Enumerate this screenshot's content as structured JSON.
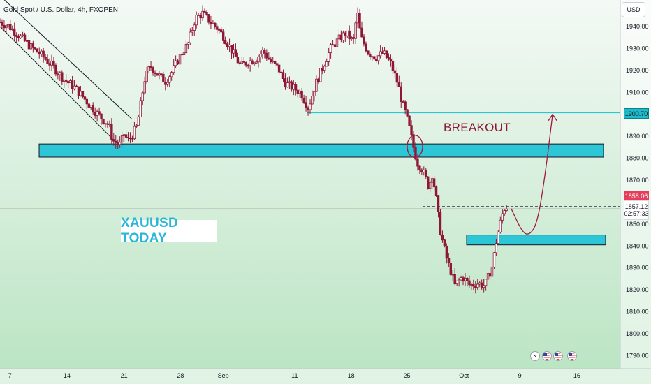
{
  "header": {
    "symbol_title": "Gold Spot / U.S. Dollar, 4h, FXOPEN",
    "currency": "USD"
  },
  "annotations": {
    "chart_label": "XAUUSD TODAY",
    "breakout_label": "BREAKOUT"
  },
  "price_tags": {
    "target": "1900.70",
    "current": "1858.06",
    "last_price": "1857.12",
    "countdown": "02:57:33"
  },
  "events": [
    {
      "icon": "lightning-event-icon"
    },
    {
      "icon": "us-flag-event-icon"
    },
    {
      "icon": "us-flag-event-icon"
    },
    {
      "icon": "us-flag-event-icon"
    }
  ],
  "colors": {
    "background_top": "#f3f9f4",
    "background_bottom": "#b7e3c0",
    "candle": "#8e1835",
    "zone_fill": "#2cc6d6",
    "target_line": "#2cc6d6",
    "arrow": "#a0193d",
    "price_tag_red": "#e53e5a"
  },
  "chart_data": {
    "type": "candlestick",
    "timeframe": "4h",
    "x_ticks": [
      "7",
      "14",
      "21",
      "28",
      "Sep",
      "11",
      "18",
      "25",
      "Oct",
      "9",
      "16"
    ],
    "y_ticks": [
      1790,
      1800,
      1810,
      1820,
      1830,
      1840,
      1850,
      1860,
      1870,
      1880,
      1890,
      1900,
      1910,
      1920,
      1930,
      1940
    ],
    "ylim": [
      1786,
      1954
    ],
    "grid": false,
    "close_path": [
      [
        0,
        1942
      ],
      [
        5,
        1940
      ],
      [
        10,
        1936
      ],
      [
        16,
        1931
      ],
      [
        22,
        1927
      ],
      [
        28,
        1922
      ],
      [
        34,
        1916
      ],
      [
        40,
        1912
      ],
      [
        46,
        1906
      ],
      [
        52,
        1900
      ],
      [
        58,
        1895
      ],
      [
        60,
        1888
      ],
      [
        64,
        1886
      ],
      [
        66,
        1891
      ],
      [
        68,
        1888
      ],
      [
        70,
        1890
      ],
      [
        73,
        1895
      ],
      [
        77,
        1916
      ],
      [
        80,
        1922
      ],
      [
        84,
        1918
      ],
      [
        88,
        1915
      ],
      [
        92,
        1920
      ],
      [
        96,
        1927
      ],
      [
        100,
        1932
      ],
      [
        104,
        1944
      ],
      [
        108,
        1946
      ],
      [
        112,
        1942
      ],
      [
        116,
        1939
      ],
      [
        120,
        1934
      ],
      [
        124,
        1928
      ],
      [
        128,
        1922
      ],
      [
        132,
        1924
      ],
      [
        136,
        1925
      ],
      [
        140,
        1929
      ],
      [
        144,
        1924
      ],
      [
        148,
        1921
      ],
      [
        152,
        1914
      ],
      [
        156,
        1912
      ],
      [
        160,
        1910
      ],
      [
        164,
        1903
      ],
      [
        168,
        1914
      ],
      [
        172,
        1922
      ],
      [
        176,
        1930
      ],
      [
        180,
        1934
      ],
      [
        184,
        1937
      ],
      [
        188,
        1933
      ],
      [
        190,
        1947
      ],
      [
        192,
        1935
      ],
      [
        196,
        1928
      ],
      [
        200,
        1926
      ],
      [
        204,
        1928
      ],
      [
        208,
        1923
      ],
      [
        212,
        1913
      ],
      [
        214,
        1905
      ],
      [
        216,
        1900
      ],
      [
        218,
        1893
      ],
      [
        220,
        1885
      ],
      [
        222,
        1878
      ],
      [
        224,
        1876
      ],
      [
        226,
        1872
      ],
      [
        228,
        1867
      ],
      [
        230,
        1873
      ],
      [
        232,
        1862
      ],
      [
        234,
        1848
      ],
      [
        236,
        1840
      ],
      [
        238,
        1833
      ],
      [
        240,
        1828
      ],
      [
        242,
        1822
      ],
      [
        246,
        1826
      ],
      [
        250,
        1822
      ],
      [
        254,
        1823
      ],
      [
        258,
        1822
      ],
      [
        262,
        1831
      ],
      [
        264,
        1842
      ],
      [
        266,
        1850
      ],
      [
        268,
        1857
      ],
      [
        270,
        1858
      ]
    ],
    "channel_lines": [
      {
        "from": {
          "x": 0,
          "y": 1954
        },
        "to": {
          "x": 70,
          "y": 1898
        }
      },
      {
        "from": {
          "x": 0,
          "y": 1940
        },
        "to": {
          "x": 62,
          "y": 1887
        }
      }
    ],
    "zones": [
      {
        "y_top": 1886.5,
        "y_bottom": 1880.5
      },
      {
        "y_top": 1845,
        "y_bottom": 1840.5
      }
    ],
    "levels": {
      "target": 1900.7,
      "current": 1858.06,
      "last_price": 1857.12
    },
    "projection": [
      [
        272,
        1857
      ],
      [
        278,
        1846
      ],
      [
        282,
        1845
      ],
      [
        286,
        1851
      ],
      [
        290,
        1872
      ],
      [
        294,
        1900
      ]
    ],
    "breakout_point": [
      220,
      1886
    ]
  }
}
